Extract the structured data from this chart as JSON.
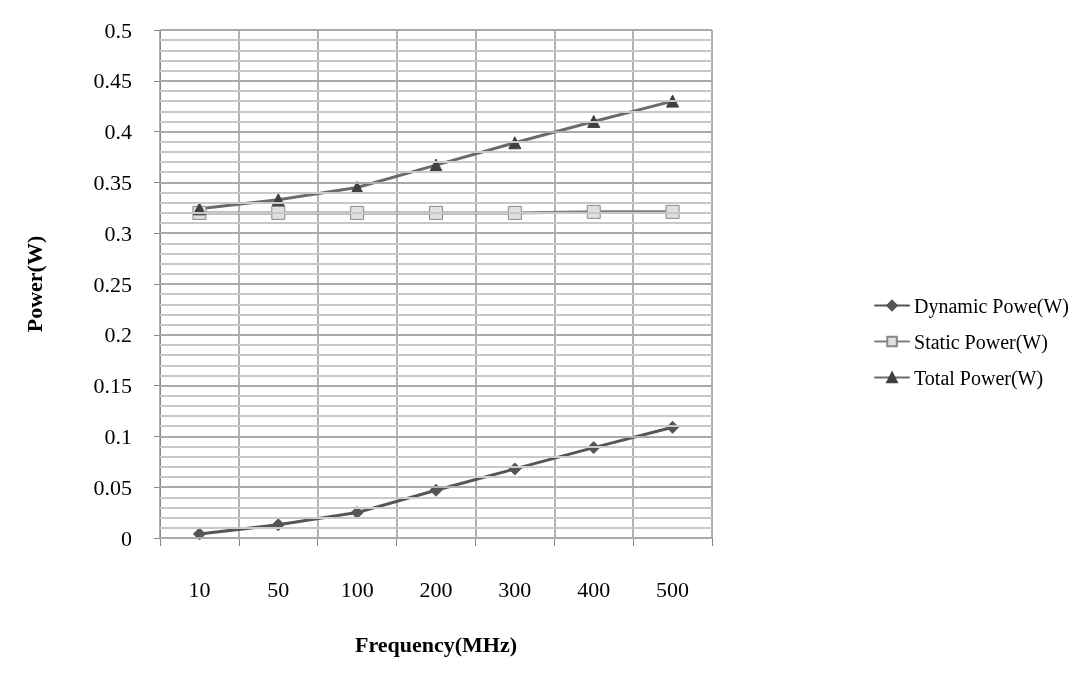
{
  "chart_data": {
    "type": "line",
    "xlabel": "Frequency(MHz)",
    "ylabel": "Power(W)",
    "categories": [
      "10",
      "50",
      "100",
      "200",
      "300",
      "400",
      "500"
    ],
    "series": [
      {
        "name": "Dynamic Powe(W)",
        "color": "#555555",
        "marker": "diamond",
        "values": [
          0.004,
          0.013,
          0.025,
          0.047,
          0.068,
          0.089,
          0.109
        ]
      },
      {
        "name": "Static Power(W)",
        "color": "#7f7f7f",
        "marker": "square",
        "values": [
          0.32,
          0.32,
          0.32,
          0.32,
          0.32,
          0.321,
          0.321
        ]
      },
      {
        "name": "Total Power(W)",
        "color": "#6b6b6b",
        "marker": "triangle",
        "values": [
          0.324,
          0.333,
          0.345,
          0.367,
          0.389,
          0.41,
          0.43
        ]
      }
    ],
    "ylim": [
      0,
      0.5
    ],
    "yticks": [
      0,
      0.05,
      0.1,
      0.15,
      0.2,
      0.25,
      0.3,
      0.35,
      0.4,
      0.45,
      0.5
    ],
    "grid": true,
    "legend": "right"
  }
}
